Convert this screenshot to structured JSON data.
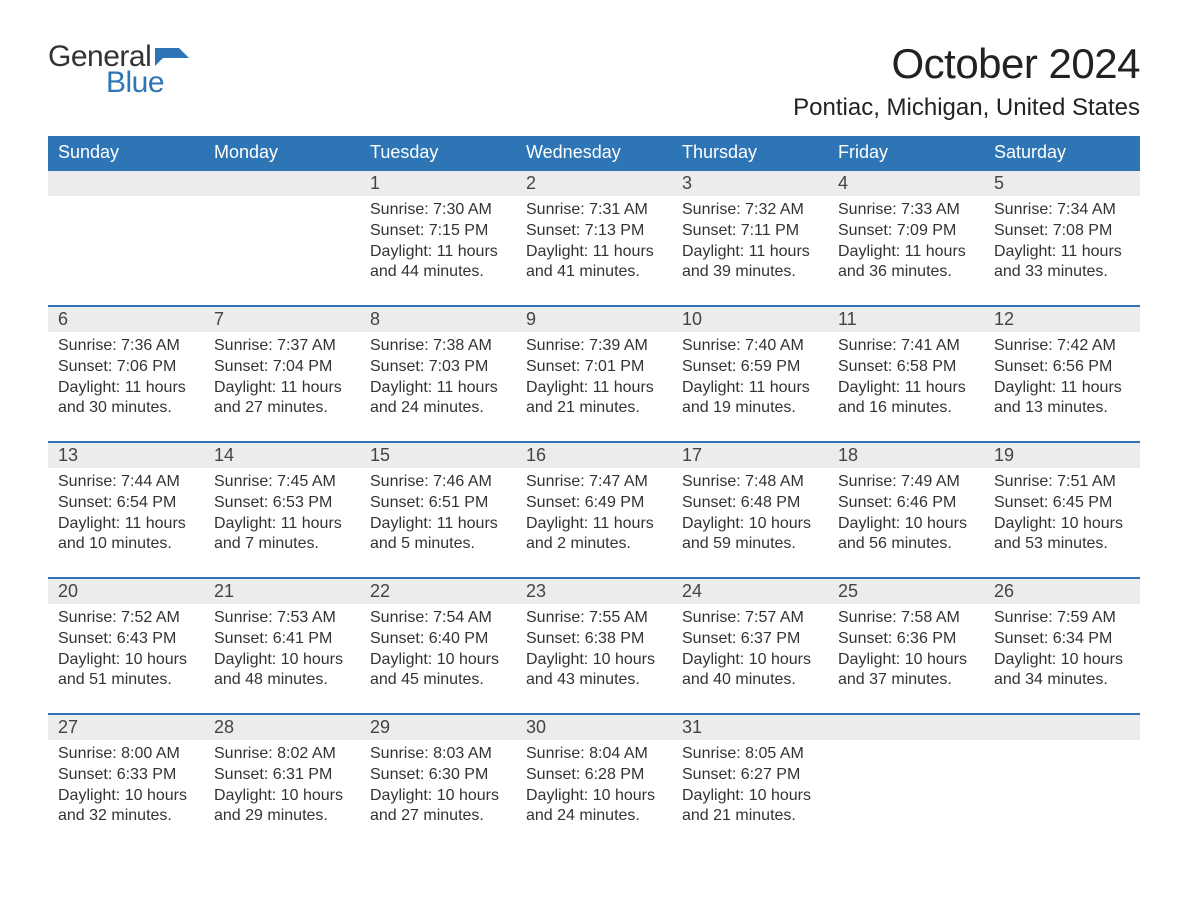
{
  "brand": {
    "word1": "General",
    "word2": "Blue",
    "flag_color": "#2e75b6",
    "text_color_dark": "#333333"
  },
  "header": {
    "title": "October 2024",
    "location": "Pontiac, Michigan, United States"
  },
  "calendar": {
    "type": "table",
    "header_bg": "#2e75b6",
    "header_fg": "#ffffff",
    "daynum_bg": "#ececec",
    "daynum_border_top": "#2e75b6",
    "body_bg": "#ffffff",
    "text_color": "#333333",
    "font_family": "Arial",
    "header_fontsize": 18,
    "daynum_fontsize": 18,
    "body_fontsize": 16,
    "columns": [
      "Sunday",
      "Monday",
      "Tuesday",
      "Wednesday",
      "Thursday",
      "Friday",
      "Saturday"
    ],
    "weeks": [
      [
        null,
        null,
        {
          "day": "1",
          "sunrise": "Sunrise: 7:30 AM",
          "sunset": "Sunset: 7:15 PM",
          "dl1": "Daylight: 11 hours",
          "dl2": "and 44 minutes."
        },
        {
          "day": "2",
          "sunrise": "Sunrise: 7:31 AM",
          "sunset": "Sunset: 7:13 PM",
          "dl1": "Daylight: 11 hours",
          "dl2": "and 41 minutes."
        },
        {
          "day": "3",
          "sunrise": "Sunrise: 7:32 AM",
          "sunset": "Sunset: 7:11 PM",
          "dl1": "Daylight: 11 hours",
          "dl2": "and 39 minutes."
        },
        {
          "day": "4",
          "sunrise": "Sunrise: 7:33 AM",
          "sunset": "Sunset: 7:09 PM",
          "dl1": "Daylight: 11 hours",
          "dl2": "and 36 minutes."
        },
        {
          "day": "5",
          "sunrise": "Sunrise: 7:34 AM",
          "sunset": "Sunset: 7:08 PM",
          "dl1": "Daylight: 11 hours",
          "dl2": "and 33 minutes."
        }
      ],
      [
        {
          "day": "6",
          "sunrise": "Sunrise: 7:36 AM",
          "sunset": "Sunset: 7:06 PM",
          "dl1": "Daylight: 11 hours",
          "dl2": "and 30 minutes."
        },
        {
          "day": "7",
          "sunrise": "Sunrise: 7:37 AM",
          "sunset": "Sunset: 7:04 PM",
          "dl1": "Daylight: 11 hours",
          "dl2": "and 27 minutes."
        },
        {
          "day": "8",
          "sunrise": "Sunrise: 7:38 AM",
          "sunset": "Sunset: 7:03 PM",
          "dl1": "Daylight: 11 hours",
          "dl2": "and 24 minutes."
        },
        {
          "day": "9",
          "sunrise": "Sunrise: 7:39 AM",
          "sunset": "Sunset: 7:01 PM",
          "dl1": "Daylight: 11 hours",
          "dl2": "and 21 minutes."
        },
        {
          "day": "10",
          "sunrise": "Sunrise: 7:40 AM",
          "sunset": "Sunset: 6:59 PM",
          "dl1": "Daylight: 11 hours",
          "dl2": "and 19 minutes."
        },
        {
          "day": "11",
          "sunrise": "Sunrise: 7:41 AM",
          "sunset": "Sunset: 6:58 PM",
          "dl1": "Daylight: 11 hours",
          "dl2": "and 16 minutes."
        },
        {
          "day": "12",
          "sunrise": "Sunrise: 7:42 AM",
          "sunset": "Sunset: 6:56 PM",
          "dl1": "Daylight: 11 hours",
          "dl2": "and 13 minutes."
        }
      ],
      [
        {
          "day": "13",
          "sunrise": "Sunrise: 7:44 AM",
          "sunset": "Sunset: 6:54 PM",
          "dl1": "Daylight: 11 hours",
          "dl2": "and 10 minutes."
        },
        {
          "day": "14",
          "sunrise": "Sunrise: 7:45 AM",
          "sunset": "Sunset: 6:53 PM",
          "dl1": "Daylight: 11 hours",
          "dl2": "and 7 minutes."
        },
        {
          "day": "15",
          "sunrise": "Sunrise: 7:46 AM",
          "sunset": "Sunset: 6:51 PM",
          "dl1": "Daylight: 11 hours",
          "dl2": "and 5 minutes."
        },
        {
          "day": "16",
          "sunrise": "Sunrise: 7:47 AM",
          "sunset": "Sunset: 6:49 PM",
          "dl1": "Daylight: 11 hours",
          "dl2": "and 2 minutes."
        },
        {
          "day": "17",
          "sunrise": "Sunrise: 7:48 AM",
          "sunset": "Sunset: 6:48 PM",
          "dl1": "Daylight: 10 hours",
          "dl2": "and 59 minutes."
        },
        {
          "day": "18",
          "sunrise": "Sunrise: 7:49 AM",
          "sunset": "Sunset: 6:46 PM",
          "dl1": "Daylight: 10 hours",
          "dl2": "and 56 minutes."
        },
        {
          "day": "19",
          "sunrise": "Sunrise: 7:51 AM",
          "sunset": "Sunset: 6:45 PM",
          "dl1": "Daylight: 10 hours",
          "dl2": "and 53 minutes."
        }
      ],
      [
        {
          "day": "20",
          "sunrise": "Sunrise: 7:52 AM",
          "sunset": "Sunset: 6:43 PM",
          "dl1": "Daylight: 10 hours",
          "dl2": "and 51 minutes."
        },
        {
          "day": "21",
          "sunrise": "Sunrise: 7:53 AM",
          "sunset": "Sunset: 6:41 PM",
          "dl1": "Daylight: 10 hours",
          "dl2": "and 48 minutes."
        },
        {
          "day": "22",
          "sunrise": "Sunrise: 7:54 AM",
          "sunset": "Sunset: 6:40 PM",
          "dl1": "Daylight: 10 hours",
          "dl2": "and 45 minutes."
        },
        {
          "day": "23",
          "sunrise": "Sunrise: 7:55 AM",
          "sunset": "Sunset: 6:38 PM",
          "dl1": "Daylight: 10 hours",
          "dl2": "and 43 minutes."
        },
        {
          "day": "24",
          "sunrise": "Sunrise: 7:57 AM",
          "sunset": "Sunset: 6:37 PM",
          "dl1": "Daylight: 10 hours",
          "dl2": "and 40 minutes."
        },
        {
          "day": "25",
          "sunrise": "Sunrise: 7:58 AM",
          "sunset": "Sunset: 6:36 PM",
          "dl1": "Daylight: 10 hours",
          "dl2": "and 37 minutes."
        },
        {
          "day": "26",
          "sunrise": "Sunrise: 7:59 AM",
          "sunset": "Sunset: 6:34 PM",
          "dl1": "Daylight: 10 hours",
          "dl2": "and 34 minutes."
        }
      ],
      [
        {
          "day": "27",
          "sunrise": "Sunrise: 8:00 AM",
          "sunset": "Sunset: 6:33 PM",
          "dl1": "Daylight: 10 hours",
          "dl2": "and 32 minutes."
        },
        {
          "day": "28",
          "sunrise": "Sunrise: 8:02 AM",
          "sunset": "Sunset: 6:31 PM",
          "dl1": "Daylight: 10 hours",
          "dl2": "and 29 minutes."
        },
        {
          "day": "29",
          "sunrise": "Sunrise: 8:03 AM",
          "sunset": "Sunset: 6:30 PM",
          "dl1": "Daylight: 10 hours",
          "dl2": "and 27 minutes."
        },
        {
          "day": "30",
          "sunrise": "Sunrise: 8:04 AM",
          "sunset": "Sunset: 6:28 PM",
          "dl1": "Daylight: 10 hours",
          "dl2": "and 24 minutes."
        },
        {
          "day": "31",
          "sunrise": "Sunrise: 8:05 AM",
          "sunset": "Sunset: 6:27 PM",
          "dl1": "Daylight: 10 hours",
          "dl2": "and 21 minutes."
        },
        null,
        null
      ]
    ]
  }
}
